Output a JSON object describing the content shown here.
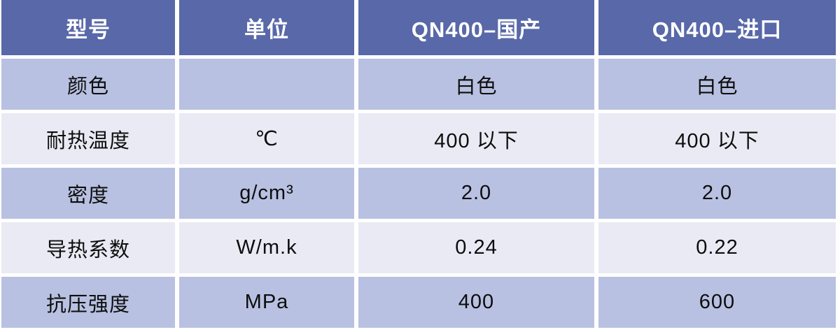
{
  "colors": {
    "header_bg": "#5868a8",
    "header_text": "#ffffff",
    "row_band_bg": "#b8c1e1",
    "row_light_bg": "#e9eaf4",
    "body_text": "#0d0d0d",
    "gutter": "#ffffff"
  },
  "table": {
    "headers": [
      "型号",
      "单位",
      "QN400–国产",
      "QN400–进口"
    ],
    "rows": [
      {
        "cells": [
          "颜色",
          "",
          "白色",
          "白色"
        ]
      },
      {
        "cells": [
          "耐热温度",
          "℃",
          "400 以下",
          "400 以下"
        ]
      },
      {
        "cells": [
          "密度",
          "g/cm³",
          "2.0",
          "2.0"
        ]
      },
      {
        "cells": [
          "导热系数",
          "W/m.k",
          "0.24",
          "0.22"
        ]
      },
      {
        "cells": [
          "抗压强度",
          "MPa",
          "400",
          "600"
        ]
      }
    ]
  },
  "chart_data": {
    "type": "table",
    "columns": [
      "型号",
      "单位",
      "QN400–国产",
      "QN400–进口"
    ],
    "rows": [
      [
        "颜色",
        "",
        "白色",
        "白色"
      ],
      [
        "耐热温度",
        "℃",
        "400 以下",
        "400 以下"
      ],
      [
        "密度",
        "g/cm³",
        "2.0",
        "2.0"
      ],
      [
        "导热系数",
        "W/m.k",
        "0.24",
        "0.22"
      ],
      [
        "抗压强度",
        "MPa",
        "400",
        "600"
      ]
    ]
  }
}
